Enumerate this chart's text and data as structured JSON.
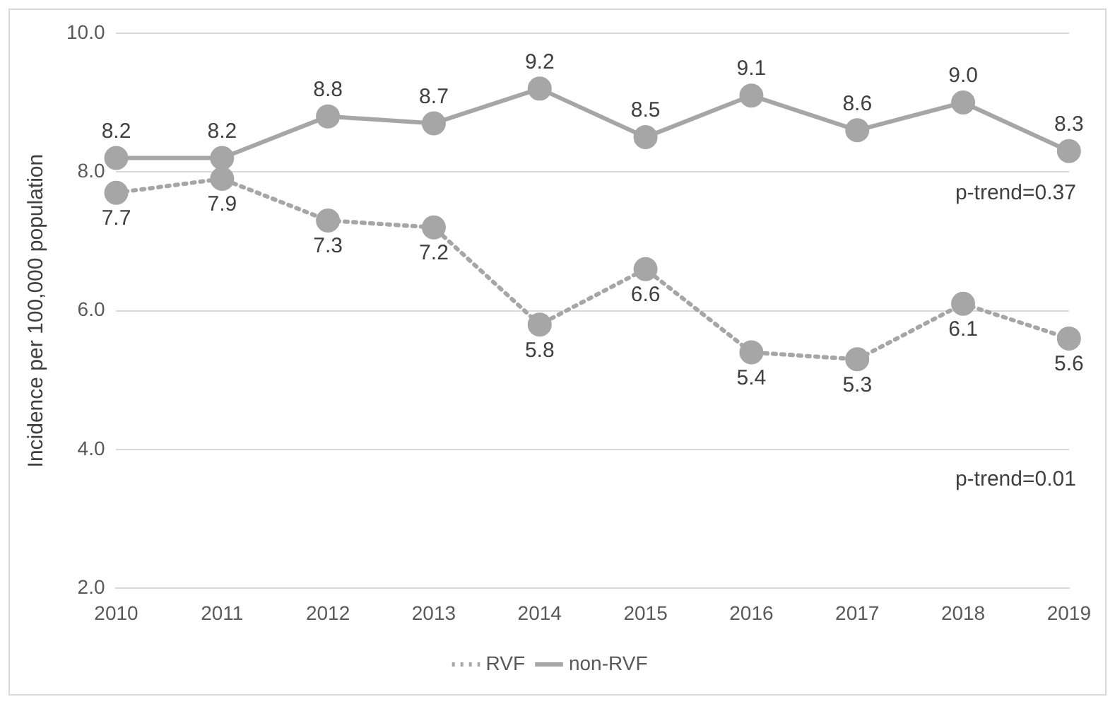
{
  "chart_data": {
    "type": "line",
    "ylabel": "Incidence per 100,000 population",
    "categories": [
      "2010",
      "2011",
      "2012",
      "2013",
      "2014",
      "2015",
      "2016",
      "2017",
      "2018",
      "2019"
    ],
    "series": [
      {
        "name": "RVF",
        "color": "#a6a6a6",
        "line_style": "dotted",
        "values": [
          7.7,
          7.9,
          7.3,
          7.2,
          5.8,
          6.6,
          5.4,
          5.3,
          6.1,
          5.6
        ],
        "value_labels": [
          "7.7",
          "7.9",
          "7.3",
          "7.2",
          "5.8",
          "6.6",
          "5.4",
          "5.3",
          "6.1",
          "5.6"
        ]
      },
      {
        "name": "non-RVF",
        "color": "#a6a6a6",
        "line_style": "solid",
        "values": [
          8.2,
          8.2,
          8.8,
          8.7,
          9.2,
          8.5,
          9.1,
          8.6,
          9.0,
          8.3
        ],
        "value_labels": [
          "8.2",
          "8.2",
          "8.8",
          "8.7",
          "9.2",
          "8.5",
          "9.1",
          "8.6",
          "9.0",
          "8.3"
        ]
      }
    ],
    "ylim": [
      2,
      10
    ],
    "yticks": [
      {
        "value": 2,
        "label": "2.0"
      },
      {
        "value": 4,
        "label": "4.0"
      },
      {
        "value": 6,
        "label": "6.0"
      },
      {
        "value": 8,
        "label": "8.0"
      },
      {
        "value": 10,
        "label": "10.0"
      }
    ],
    "grid": "y",
    "legend": "bottom",
    "marker": "circle",
    "annotations": [
      "p-trend=0.37",
      "p-trend=0.01"
    ]
  }
}
